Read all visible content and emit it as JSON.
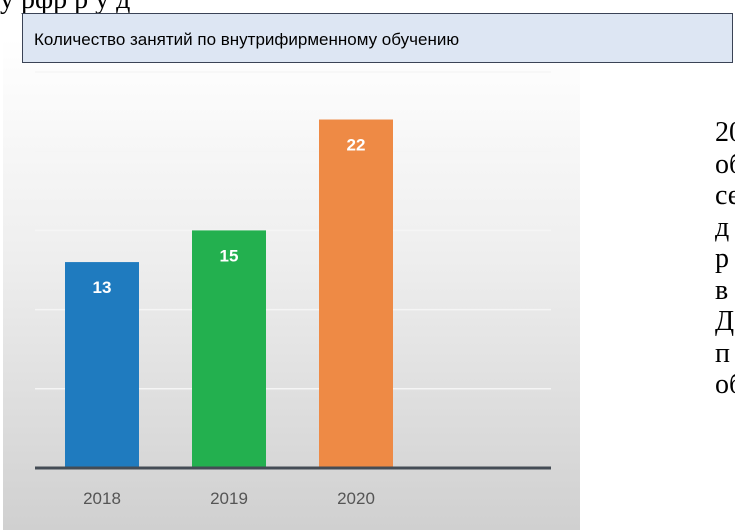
{
  "colors": {
    "bar_2018": "#1f7bbf",
    "bar_2019": "#23b04f",
    "bar_2020": "#ee8a45",
    "grid": "#f5f5f5",
    "baseline": "#444c55",
    "caption_bg": "#dde6f3"
  },
  "chart_data": {
    "type": "bar",
    "title": "Количество занятий по внутрифирменному обучению",
    "categories": [
      "2018",
      "2019",
      "2020"
    ],
    "values": [
      13,
      15,
      22
    ],
    "ylim": [
      0,
      25
    ],
    "grid": true,
    "data_labels": true
  },
  "text_fragments": {
    "top_cut": "у рфр  р        у    д",
    "side_lines": [
      "20",
      "об",
      "се",
      "д",
      "р",
      "в",
      "Д",
      "п",
      "об"
    ]
  }
}
